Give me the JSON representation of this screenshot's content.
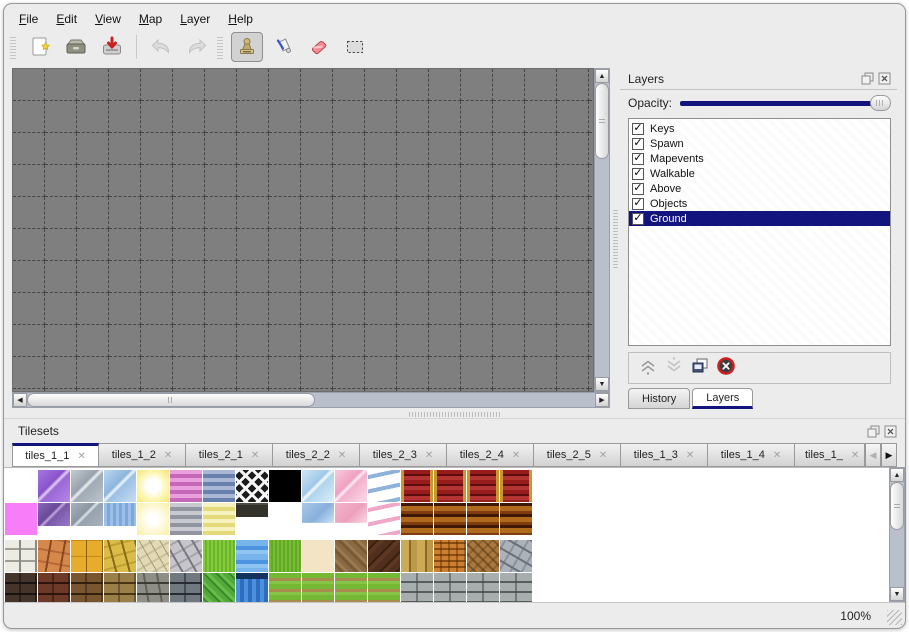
{
  "colors": {
    "accent": "#14147e",
    "canvas_bg": "#7f7f7f",
    "grid_line": "#454545",
    "scroll_track": "#b9bfcb",
    "selection_text": "#ffffff"
  },
  "menubar": {
    "items": [
      {
        "label": "File"
      },
      {
        "label": "Edit"
      },
      {
        "label": "View"
      },
      {
        "label": "Map"
      },
      {
        "label": "Layer"
      },
      {
        "label": "Help"
      }
    ]
  },
  "toolbar": {
    "groups": [
      {
        "buttons": [
          {
            "icon": "new-file",
            "name": "new-map-button"
          },
          {
            "icon": "open-folder",
            "name": "open-button"
          },
          {
            "icon": "save",
            "name": "save-button"
          },
          {
            "sep": true
          },
          {
            "icon": "undo",
            "name": "undo-button",
            "disabled": true
          },
          {
            "icon": "redo",
            "name": "redo-button",
            "disabled": true
          }
        ]
      },
      {
        "buttons": [
          {
            "icon": "stamp-tool",
            "name": "stamp-tool-button",
            "selected": true
          },
          {
            "icon": "fill-tool",
            "name": "fill-tool-button"
          },
          {
            "icon": "eraser-tool",
            "name": "eraser-tool-button"
          },
          {
            "icon": "rect-select-tool",
            "name": "rect-select-tool-button"
          }
        ]
      }
    ]
  },
  "canvas": {
    "grid_size": 32,
    "cols": 19,
    "rows": 11
  },
  "layers_panel": {
    "title": "Layers",
    "opacity_label": "Opacity:",
    "opacity_percent": 100,
    "layers": [
      {
        "label": "Keys",
        "checked": true,
        "selected": false
      },
      {
        "label": "Spawn",
        "checked": true,
        "selected": false
      },
      {
        "label": "Mapevents",
        "checked": true,
        "selected": false
      },
      {
        "label": "Walkable",
        "checked": true,
        "selected": false
      },
      {
        "label": "Above",
        "checked": true,
        "selected": false
      },
      {
        "label": "Objects",
        "checked": true,
        "selected": false
      },
      {
        "label": "Ground",
        "checked": true,
        "selected": true
      }
    ],
    "action_buttons": [
      {
        "icon": "move-layer-up",
        "name": "move-layer-up-button",
        "disabled": true
      },
      {
        "icon": "move-layer-down",
        "name": "move-layer-down-button",
        "disabled": true
      },
      {
        "icon": "duplicate-layer",
        "name": "duplicate-layer-button"
      },
      {
        "icon": "delete-layer",
        "name": "delete-layer-button"
      }
    ],
    "tabs": [
      {
        "label": "History",
        "active": false
      },
      {
        "label": "Layers",
        "active": true
      }
    ]
  },
  "tilesets_panel": {
    "title": "Tilesets",
    "tabs": [
      {
        "label": "tiles_1_1",
        "active": true
      },
      {
        "label": "tiles_1_2",
        "active": false
      },
      {
        "label": "tiles_2_1",
        "active": false
      },
      {
        "label": "tiles_2_2",
        "active": false
      },
      {
        "label": "tiles_2_3",
        "active": false
      },
      {
        "label": "tiles_2_4",
        "active": false
      },
      {
        "label": "tiles_2_5",
        "active": false
      },
      {
        "label": "tiles_1_3",
        "active": false
      },
      {
        "label": "tiles_1_4",
        "active": false
      },
      {
        "label": "tiles_1_",
        "active": false,
        "truncated": true
      }
    ],
    "close_glyph": "✕",
    "tile_size": 32,
    "tile_rows": [
      [
        {
          "name": "empty",
          "bg": "#ffffff"
        },
        {
          "name": "glass-purple",
          "bg": "linear-gradient(135deg,#a678de,#8a52cc 42%,#e4d2f8 48%,#9a66d6 54%,#b488e8)"
        },
        {
          "name": "glass-gray",
          "bg": "linear-gradient(135deg,#c4cad0,#98a2ac 42%,#eef2f5 48%,#a0aab4 54%,#bcc4cc)"
        },
        {
          "name": "glass-blue",
          "bg": "linear-gradient(135deg,#bcd8ee,#8cb4dc 42%,#f0f8fd 48%,#9cc0e4 54%,#c8def2)"
        },
        {
          "name": "glow-yellow",
          "bg": "radial-gradient(circle,#ffffff 28%,#fdf6b0 62%,#f3e478)"
        },
        {
          "name": "stripes-pink",
          "bg": "repeating-linear-gradient(180deg,#e9a0da 0 4px,#c express568b8 0 0)",
          "bg_fix": "repeating-linear-gradient(180deg,#e9a0da 0 4px,#c568b8 4px 8px)"
        },
        {
          "name": "stripes-blue",
          "bg": "repeating-linear-gradient(180deg,#aab8d6 0 4px,#6880ac 4px 8px)"
        },
        {
          "name": "lattice",
          "bg": "repeating-linear-gradient(45deg,rgba(0,0,0,0) 0 6px,#f6f6f6 6px 9px),repeating-linear-gradient(-45deg,rgba(0,0,0,0) 0 6px,#f6f6f6 6px 9px),#1c1c1c"
        },
        {
          "name": "black",
          "bg": "#000000"
        },
        {
          "name": "glass-lightblue",
          "bg": "linear-gradient(135deg,#cfe6f6,#a0c8e8 42%,#f6fbfe 48%,#b0d4ec 54%,#daeefa)"
        },
        {
          "name": "glass-pink",
          "bg": "linear-gradient(135deg,#f9cadd,#f0a0c0 42%,#feeff6 48%,#f4b0cc 54%,#fbdae9)"
        },
        {
          "name": "wave-blue-white",
          "bg": "repeating-linear-gradient(168deg,#ffffff 0 5px,#8fb3d8 5px 9px,#ffffff 9px 14px)"
        },
        {
          "name": "carpet-red",
          "bg": "linear-gradient(90deg,#c89830 3px,rgba(0,0,0,0) 3px 29px,#c89830 29px),repeating-linear-gradient(180deg,#981c1c 0 4px,#5c0e0e 4px 6px,#b43434 6px 10px)"
        },
        {
          "name": "carpet-red",
          "bg": "linear-gradient(90deg,#c89830 3px,rgba(0,0,0,0) 3px 29px,#c89830 29px),repeating-linear-gradient(180deg,#981c1c 0 4px,#5c0e0e 4px 6px,#b43434 6px 10px)"
        },
        {
          "name": "carpet-red",
          "bg": "linear-gradient(90deg,#c89830 3px,rgba(0,0,0,0) 3px 29px,#c89830 29px),repeating-linear-gradient(180deg,#981c1c 0 4px,#5c0e0e 4px 6px,#b43434 6px 10px)"
        },
        {
          "name": "carpet-red",
          "bg": "linear-gradient(90deg,#c89830 3px,rgba(0,0,0,0) 3px 29px,#c89830 29px),repeating-linear-gradient(180deg,#981c1c 0 4px,#5c0e0e 4px 6px,#b43434 6px 10px)"
        }
      ],
      [
        {
          "name": "magenta",
          "bg": "#f87df8"
        },
        {
          "name": "glass-darkpurple",
          "bg": "linear-gradient(135deg,#8a68b8,#6a4898 42%,#c4aae2 48%,#7a58a8 54%,#9678c8) top left/100% 72% no-repeat #ffffff"
        },
        {
          "name": "glass-darkgray",
          "bg": "linear-gradient(135deg,#aab2bc,#8a96a2 42%,#dfe5ea 48%,#96a2ae 54%,#a8b2bc) top left/100% 72% no-repeat #ffffff"
        },
        {
          "name": "water-shimmer",
          "bg": "repeating-linear-gradient(90deg,#9cc0e8 0 3px,#7aa8dc 3px 6px) top left/100% 72% no-repeat #ffffff"
        },
        {
          "name": "glow-paleyellow",
          "bg": "radial-gradient(circle,#ffffff 22%,#fcf6c8 68%,#f7efa6)"
        },
        {
          "name": "stripes-gray",
          "bg": "repeating-linear-gradient(180deg,#c9c9d1 0 4px,#92949f 4px 8px)"
        },
        {
          "name": "stripes-yellow",
          "bg": "repeating-linear-gradient(180deg,#f6f2c0 0 4px,#e4da7c 4px 8px)"
        },
        {
          "name": "sign-plaque",
          "bg": "linear-gradient(180deg,#4c4c44 0 2px,#33332c 2px) top left/100% 45% no-repeat #ffffff"
        },
        {
          "name": "empty",
          "bg": "#ffffff"
        },
        {
          "name": "glass-blue-small",
          "bg": "linear-gradient(135deg,#a8c8e8,#88b0dc 55%,#cce2f5) top left/100% 62% no-repeat #ffffff"
        },
        {
          "name": "glass-pink-small",
          "bg": "linear-gradient(135deg,#f4b4cc,#eca0bc 55%,#fbd8e5) top left/100% 62% no-repeat #ffffff"
        },
        {
          "name": "wave-pink-white",
          "bg": "repeating-linear-gradient(168deg,#ffffff 0 5px,#f0a8c8 5px 9px,#ffffff 9px 14px)"
        },
        {
          "name": "plank-orange",
          "bg": "repeating-linear-gradient(180deg,#401808 0 3px,#b06a1e 3px 8px,#803c0e 8px 11px)"
        },
        {
          "name": "plank-orange",
          "bg": "repeating-linear-gradient(180deg,#401808 0 3px,#b06a1e 3px 8px,#803c0e 8px 11px)"
        },
        {
          "name": "plank-orange",
          "bg": "repeating-linear-gradient(180deg,#401808 0 3px,#b06a1e 3px 8px,#803c0e 8px 11px)"
        },
        {
          "name": "plank-orange",
          "bg": "repeating-linear-gradient(180deg,#401808 0 3px,#b06a1e 3px 8px,#803c0e 8px 11px)"
        }
      ],
      [
        {
          "name": "stone-path-white",
          "bg": "repeating-linear-gradient(90deg,rgba(0,0,0,0) 0 14px,#8a8a82 14px 16px),repeating-linear-gradient(0deg,#ecece4 0 10px,#a09e96 10px 12px)"
        },
        {
          "name": "cobble-orange",
          "bg": "repeating-linear-gradient(100deg,rgba(0,0,0,0) 0 12px,#8a4820 12px 14px),repeating-linear-gradient(10deg,#d4884c 0 10px,#b86838 10px 12px)"
        },
        {
          "name": "tiles-gold",
          "bg": "repeating-linear-gradient(90deg,rgba(0,0,0,0) 0 15px,#8a6010 15px 16px),repeating-linear-gradient(0deg,#e8ac2c 0 15px,#c88c18 15px 16px)"
        },
        {
          "name": "stones-yellow",
          "bg": "repeating-linear-gradient(75deg,rgba(0,0,0,0) 0 11px,#8a6c18 11px 13px),repeating-linear-gradient(-15deg,#dcbc48 0 9px,#c0a030 9px 11px)"
        },
        {
          "name": "pebbles-beige",
          "bg": "repeating-linear-gradient(60deg,rgba(0,0,0,0) 0 8px,#a89c74 8px 9px),repeating-linear-gradient(-30deg,#e2dab6 0 7px,#ccc09a 7px 9px)"
        },
        {
          "name": "stones-gray",
          "bg": "repeating-linear-gradient(60deg,rgba(0,0,0,0) 0 10px,#787880 10px 12px),repeating-linear-gradient(-30deg,#c6c6ca 0 8px,#a4a4ac 8px 10px)"
        },
        {
          "name": "grass-bright",
          "bg": "repeating-linear-gradient(90deg,#84cc3c 0 2px,#6cb42c 2px 4px)"
        },
        {
          "name": "water",
          "bg": "repeating-linear-gradient(180deg,#78b4ec 0 6px,#4c94e0 6px 10px,#90c4f0 10px 14px)"
        },
        {
          "name": "grass",
          "bg": "repeating-linear-gradient(90deg,#78bc34 0 2px,#64a828 2px 4px)"
        },
        {
          "name": "sand-cream",
          "bg": "#f2e4c4"
        },
        {
          "name": "dirt-brown",
          "bg": "repeating-linear-gradient(45deg,#8a6a42 0 4px,#7a5a34 4px 7px,#9a7a4e 7px 10px)"
        },
        {
          "name": "wood-dark",
          "bg": "repeating-linear-gradient(135deg,#50301c 0 6px,#3a2010 6px 8px,#5c3822 8px 12px)"
        },
        {
          "name": "planks-vertical",
          "bg": "repeating-linear-gradient(90deg,#ccaa58 0 8px,#8a6828 8px 10px,#bc9a48 10px 16px)"
        },
        {
          "name": "basket-weave",
          "bg": "repeating-linear-gradient(90deg,rgba(0,0,0,0) 0 6px,rgba(90,48,10,0.45) 6px 8px),repeating-linear-gradient(0deg,#cc8030 0 4px,#8a4c10 4px 6px)"
        },
        {
          "name": "herringbone",
          "bg": "repeating-linear-gradient(-45deg,rgba(0,0,0,0) 0 5px,rgba(90,58,20,0.35) 5px 7px),repeating-linear-gradient(45deg,#a87840 0 5px,#7c5424 5px 7px)"
        },
        {
          "name": "rocks-gray",
          "bg": "repeating-linear-gradient(30deg,rgba(0,0,0,0) 0 9px,#6a7078 9px 11px),repeating-linear-gradient(-60deg,#acb2ba 0 8px,#8a929c 8px 10px)"
        }
      ],
      [
        {
          "name": "brick-darkbrown",
          "bg": "repeating-linear-gradient(90deg,rgba(0,0,0,0) 0 14px,rgba(20,14,10,0.5) 14px 16px),repeating-linear-gradient(180deg,#44342a 0 9px,#181210 9px 11px)"
        },
        {
          "name": "brick-red",
          "bg": "repeating-linear-gradient(90deg,rgba(0,0,0,0) 0 14px,rgba(40,16,10,0.5) 14px 16px),repeating-linear-gradient(180deg,#6e3a28 0 9px,#2e140c 9px 11px)"
        },
        {
          "name": "brick-brown",
          "bg": "repeating-linear-gradient(90deg,rgba(0,0,0,0) 0 14px,rgba(48,30,12,0.5) 14px 16px),repeating-linear-gradient(180deg,#7a5630 0 9px,#331f0e 9px 11px)"
        },
        {
          "name": "brick-tan",
          "bg": "repeating-linear-gradient(90deg,rgba(0,0,0,0) 0 14px,rgba(70,50,18,0.5) 14px 16px),repeating-linear-gradient(180deg,#9a8048 0 9px,#4a3414 9px 11px)"
        },
        {
          "name": "cobble-gray-wall",
          "bg": "repeating-linear-gradient(80deg,rgba(0,0,0,0) 0 11px,rgba(56,56,50,0.5) 11px 13px),repeating-linear-gradient(180deg,#8e8e86 0 9px,#3c3c36 9px 11px)"
        },
        {
          "name": "brick-gray",
          "bg": "repeating-linear-gradient(90deg,rgba(0,0,0,0) 0 14px,rgba(34,40,46,0.55) 14px 16px),repeating-linear-gradient(180deg,#707880 0 9px,#262c32 9px 11px)"
        },
        {
          "name": "hedge-green",
          "bg": "repeating-linear-gradient(45deg,#52a838 0 4px,#38862a 4px 6px,#68bc48 6px 9px)"
        },
        {
          "name": "waterfall-wall",
          "bg": "linear-gradient(180deg,#14325e 0 6px,rgba(0,0,0,0) 6px),repeating-linear-gradient(90deg,#4c90dc 0 4px,#2e6cc0 4px 8px)"
        },
        {
          "name": "grass-rows",
          "bg": "repeating-linear-gradient(180deg,#74b834 0 5px,#a88c50 5px 8px,#86c448 8px 11px)"
        },
        {
          "name": "grass-rows",
          "bg": "repeating-linear-gradient(180deg,#74b834 0 5px,#a88c50 5px 8px,#86c448 8px 11px)"
        },
        {
          "name": "grass-rows",
          "bg": "repeating-linear-gradient(180deg,#74b834 0 5px,#a88c50 5px 8px,#86c448 8px 11px)"
        },
        {
          "name": "grass-rows",
          "bg": "repeating-linear-gradient(180deg,#74b834 0 5px,#a88c50 5px 8px,#86c448 8px 11px)"
        },
        {
          "name": "stonebrick-gray",
          "bg": "repeating-linear-gradient(90deg,rgba(0,0,0,0) 0 15px,rgba(70,76,76,0.55) 15px 17px),repeating-linear-gradient(180deg,#a8aeae 0 8px,#585e5e 8px 10px)"
        },
        {
          "name": "stonebrick-gray",
          "bg": "repeating-linear-gradient(90deg,rgba(0,0,0,0) 0 15px,rgba(70,76,76,0.55) 15px 17px),repeating-linear-gradient(180deg,#a8aeae 0 8px,#585e5e 8px 10px)"
        },
        {
          "name": "stonebrick-gray",
          "bg": "repeating-linear-gradient(90deg,rgba(0,0,0,0) 0 15px,rgba(70,76,76,0.55) 15px 17px),repeating-linear-gradient(180deg,#a8aeae 0 8px,#585e5e 8px 10px)"
        },
        {
          "name": "stonebrick-gray",
          "bg": "repeating-linear-gradient(90deg,rgba(0,0,0,0) 0 15px,rgba(70,76,76,0.55) 15px 17px),repeating-linear-gradient(180deg,#a8aeae 0 8px,#585e5e 8px 10px)"
        }
      ]
    ]
  },
  "statusbar": {
    "zoom_level": "100%"
  }
}
